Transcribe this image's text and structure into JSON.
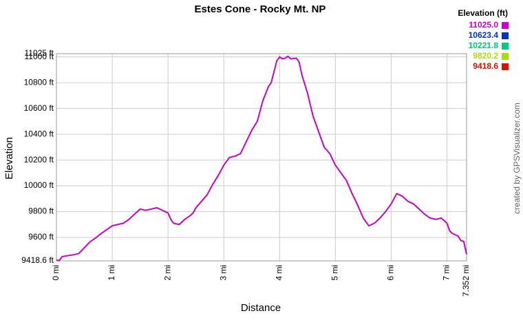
{
  "chart_data": {
    "type": "line",
    "title": "Estes Cone - Rocky Mt. NP",
    "x_label": "Distance",
    "y_label": "Elevation",
    "credit": "created by GPSVisualizer.com",
    "x": [
      0,
      0.05,
      0.1,
      0.15,
      0.3,
      0.4,
      0.5,
      0.6,
      0.7,
      0.8,
      0.9,
      1.0,
      1.1,
      1.2,
      1.3,
      1.4,
      1.5,
      1.6,
      1.7,
      1.8,
      1.9,
      2.0,
      2.05,
      2.1,
      2.2,
      2.3,
      2.4,
      2.45,
      2.5,
      2.6,
      2.7,
      2.8,
      2.9,
      3.0,
      3.1,
      3.2,
      3.3,
      3.4,
      3.5,
      3.6,
      3.7,
      3.8,
      3.85,
      3.95,
      4.0,
      4.05,
      4.1,
      4.15,
      4.2,
      4.3,
      4.35,
      4.4,
      4.5,
      4.6,
      4.7,
      4.8,
      4.9,
      5.0,
      5.1,
      5.2,
      5.3,
      5.4,
      5.5,
      5.6,
      5.7,
      5.8,
      5.9,
      6.0,
      6.1,
      6.2,
      6.3,
      6.4,
      6.5,
      6.6,
      6.7,
      6.8,
      6.9,
      7.0,
      7.05,
      7.1,
      7.2,
      7.25,
      7.3,
      7.352
    ],
    "values": [
      9425,
      9420,
      9450,
      9455,
      9465,
      9475,
      9520,
      9565,
      9595,
      9630,
      9660,
      9690,
      9700,
      9710,
      9740,
      9780,
      9820,
      9810,
      9820,
      9830,
      9810,
      9790,
      9740,
      9710,
      9700,
      9740,
      9770,
      9790,
      9830,
      9880,
      9930,
      10010,
      10080,
      10160,
      10220,
      10230,
      10250,
      10340,
      10430,
      10500,
      10660,
      10770,
      10800,
      10970,
      11000,
      10985,
      10990,
      11005,
      10985,
      10990,
      10960,
      10860,
      10720,
      10540,
      10420,
      10300,
      10250,
      10160,
      10100,
      10040,
      9940,
      9850,
      9750,
      9690,
      9710,
      9750,
      9800,
      9860,
      9940,
      9920,
      9880,
      9860,
      9820,
      9780,
      9750,
      9740,
      9750,
      9710,
      9650,
      9630,
      9610,
      9575,
      9570,
      9470
    ],
    "xlim": [
      0,
      7.352
    ],
    "ylim": [
      9418.6,
      11025
    ],
    "xticks": [
      {
        "value": 0,
        "label": "0 mi"
      },
      {
        "value": 1,
        "label": "1 mi"
      },
      {
        "value": 2,
        "label": "2 mi"
      },
      {
        "value": 3,
        "label": "3 mi"
      },
      {
        "value": 4,
        "label": "4 mi"
      },
      {
        "value": 5,
        "label": "5 mi"
      },
      {
        "value": 6,
        "label": "6 mi"
      },
      {
        "value": 7,
        "label": "7 mi"
      },
      {
        "value": 7.352,
        "label": "7.352 mi"
      }
    ],
    "yticks": [
      {
        "value": 9418.6,
        "label": "9418.6 ft"
      },
      {
        "value": 9600,
        "label": "9600 ft"
      },
      {
        "value": 9800,
        "label": "9800 ft"
      },
      {
        "value": 10000,
        "label": "10000 ft"
      },
      {
        "value": 10200,
        "label": "10200 ft"
      },
      {
        "value": 10400,
        "label": "10400 ft"
      },
      {
        "value": 10600,
        "label": "10600 ft"
      },
      {
        "value": 10800,
        "label": "10800 ft"
      },
      {
        "value": 11000,
        "label": "11000 ft"
      },
      {
        "value": 11025,
        "label": "11025 ft"
      }
    ],
    "grid": true,
    "legend_title": "Elevation (ft)",
    "color_scale": [
      {
        "value": 11025,
        "label": "11025.0",
        "color": "#cc00cc"
      },
      {
        "value": 10623.4,
        "label": "10623.4",
        "color": "#0033cc"
      },
      {
        "value": 10221.8,
        "label": "10221.8",
        "color": "#00cc77"
      },
      {
        "value": 9820.2,
        "label": "9820.2",
        "color": "#aadd00"
      },
      {
        "value": 9418.6,
        "label": "9418.6",
        "color": "#dd1100"
      }
    ]
  }
}
